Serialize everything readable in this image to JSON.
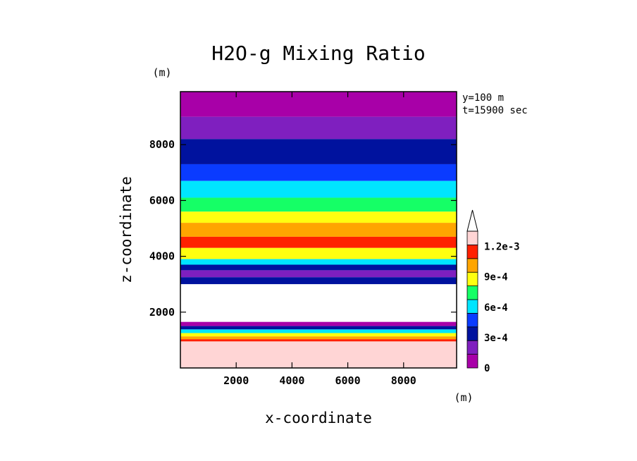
{
  "chart_data": {
    "type": "heatmap",
    "title": "H2O-g Mixing Ratio",
    "xlabel": "x-coordinate",
    "ylabel": "z-coordinate",
    "x_unit": "(m)",
    "y_unit": "(m)",
    "annotations": [
      "y=100 m",
      "t=15900 sec"
    ],
    "xlim": [
      0,
      9900
    ],
    "ylim": [
      0,
      9900
    ],
    "x_ticks": [
      2000,
      4000,
      6000,
      8000
    ],
    "y_ticks": [
      2000,
      4000,
      6000,
      8000
    ],
    "colorbar": {
      "levels": [
        0,
        0.00015,
        0.0003,
        0.00045,
        0.0006,
        0.00075,
        0.0009,
        0.00105,
        0.0012,
        0.00135
      ],
      "tick_values": [
        0,
        0.0003,
        0.0006,
        0.0009,
        0.0012
      ],
      "tick_labels": [
        "0",
        "3e-4",
        "6e-4",
        "9e-4",
        "1.2e-3"
      ],
      "colors": [
        "#a800a8",
        "#7f1fbf",
        "#00129e",
        "#0a3bff",
        "#00e5ff",
        "#15ff66",
        "#ffff10",
        "#ffa500",
        "#ff2000",
        "#ffd5d5"
      ],
      "overflow_color": "#ffffff"
    },
    "bands": [
      {
        "z": [
          9000,
          9900
        ],
        "level": 0
      },
      {
        "z": [
          8200,
          9000
        ],
        "level": 1
      },
      {
        "z": [
          7300,
          8200
        ],
        "level": 2
      },
      {
        "z": [
          6700,
          7300
        ],
        "level": 3
      },
      {
        "z": [
          6100,
          6700
        ],
        "level": 4
      },
      {
        "z": [
          5600,
          6100
        ],
        "level": 5
      },
      {
        "z": [
          5200,
          5600
        ],
        "level": 6
      },
      {
        "z": [
          4700,
          5200
        ],
        "level": 7
      },
      {
        "z": [
          4300,
          4700
        ],
        "level": 8
      },
      {
        "z": [
          3900,
          4300
        ],
        "level": 6
      },
      {
        "z": [
          3700,
          3900
        ],
        "level": 4
      },
      {
        "z": [
          3500,
          3700
        ],
        "level": 2
      },
      {
        "z": [
          3250,
          3500
        ],
        "level": 1
      },
      {
        "z": [
          3000,
          3250
        ],
        "level": 2
      },
      {
        "z": [
          1650,
          3000
        ],
        "level": 10
      },
      {
        "z": [
          1500,
          1650
        ],
        "level": 0
      },
      {
        "z": [
          1380,
          1500
        ],
        "level": 2
      },
      {
        "z": [
          1250,
          1380
        ],
        "level": 4
      },
      {
        "z": [
          1130,
          1250
        ],
        "level": 6
      },
      {
        "z": [
          1030,
          1130
        ],
        "level": 7
      },
      {
        "z": [
          950,
          1030
        ],
        "level": 8
      },
      {
        "z": [
          0,
          950
        ],
        "level": 9
      }
    ]
  }
}
